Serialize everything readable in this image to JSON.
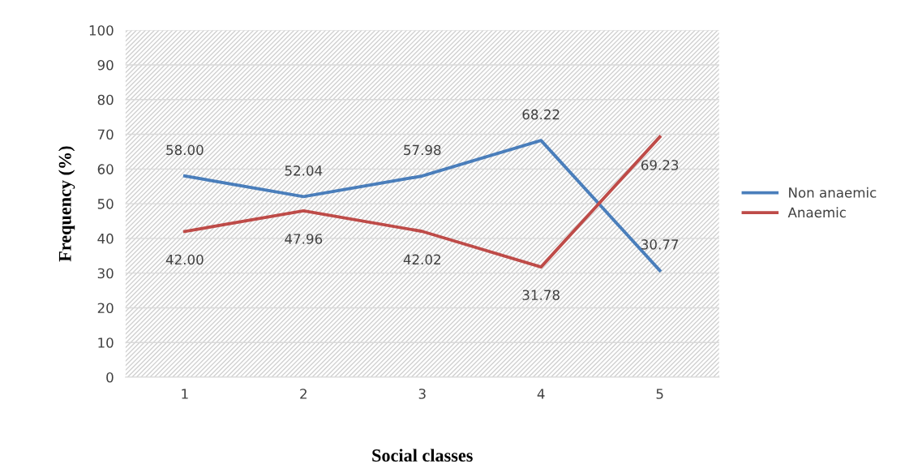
{
  "chart_data": {
    "type": "line",
    "xlabel": "Social classes",
    "ylabel": "Frequency (%)",
    "categories": [
      "1",
      "2",
      "3",
      "4",
      "5"
    ],
    "series": [
      {
        "name": "Non anaemic",
        "color": "#4a7ebb",
        "values": [
          58.0,
          52.04,
          57.98,
          68.22,
          30.77
        ],
        "value_labels": [
          "58.00",
          "52.04",
          "57.98",
          "68.22",
          "30.77"
        ]
      },
      {
        "name": "Anaemic",
        "color": "#be4b48",
        "values": [
          42.0,
          47.96,
          42.02,
          31.78,
          69.23
        ],
        "value_labels": [
          "42.00",
          "47.96",
          "42.02",
          "31.78",
          "69.23"
        ]
      }
    ],
    "ylim": [
      0,
      100
    ],
    "yticks": [
      0,
      10,
      20,
      30,
      40,
      50,
      60,
      70,
      80,
      90,
      100
    ],
    "grid": "y",
    "legend": "right",
    "marker": "none",
    "line_style": "solid"
  }
}
